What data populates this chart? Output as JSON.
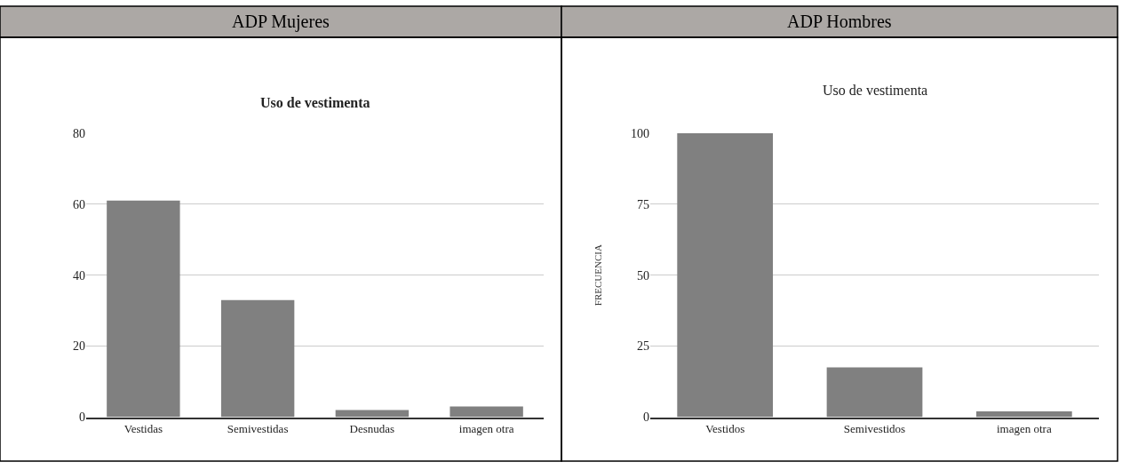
{
  "chart_data": [
    {
      "type": "bar",
      "title": "ADP Mujeres",
      "subtitle": "Uso de vestimenta",
      "categories": [
        "Vestidas",
        "Semivestidas",
        "Desnudas",
        "imagen otra"
      ],
      "values": [
        61,
        33,
        2,
        3
      ],
      "color": "#808080",
      "ylim": [
        0,
        80
      ],
      "yticks": [
        0,
        20,
        40,
        60,
        80
      ],
      "grid": "y"
    },
    {
      "type": "bar",
      "title": "ADP Hombres",
      "subtitle": "Uso de vestimenta",
      "ylabel": "FRECUENCIA",
      "categories": [
        "Vestidos",
        "Semivestidos",
        "imagen otra"
      ],
      "values": [
        100,
        17.5,
        2
      ],
      "color": "#808080",
      "ylim": [
        0,
        100
      ],
      "yticks": [
        0,
        25,
        50,
        75,
        100
      ],
      "grid": "y"
    }
  ]
}
